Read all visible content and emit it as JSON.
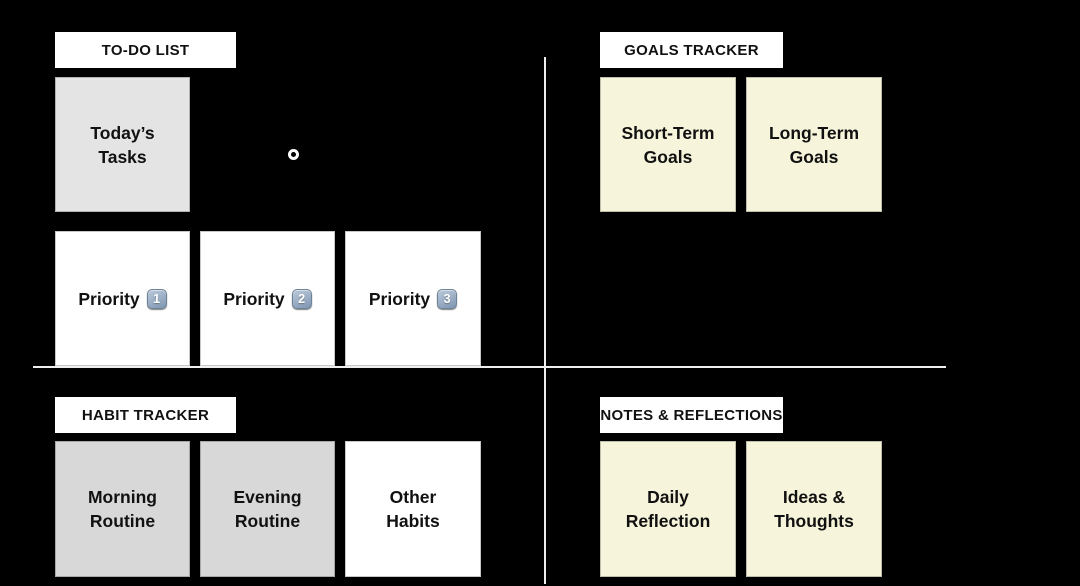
{
  "colors": {
    "background": "#000000",
    "divider": "#efefef",
    "header_bg": "#ffffff",
    "header_text": "#111111",
    "card_text": "#111111",
    "card_white": "#ffffff",
    "card_gray_light": "#e4e4e4",
    "card_gray": "#d8d8d8",
    "card_cream": "#f6f4da",
    "keycap_top": "#bccadb",
    "keycap_bottom": "#7e96b1",
    "marker": "#ffffff"
  },
  "icons": {
    "bullet_marker": "ring-circle",
    "keycap_1": "keycap digit one",
    "keycap_2": "keycap digit two",
    "keycap_3": "keycap digit three"
  },
  "quadrants": {
    "todo": {
      "header": "TO-DO LIST",
      "cards": {
        "today": {
          "line1": "Today’s",
          "line2": "Tasks"
        },
        "p1": {
          "label": "Priority",
          "keycap": "1"
        },
        "p2": {
          "label": "Priority",
          "keycap": "2"
        },
        "p3": {
          "label": "Priority",
          "keycap": "3"
        }
      }
    },
    "goals": {
      "header": "GOALS TRACKER",
      "cards": {
        "short": {
          "line1": "Short-Term",
          "line2": "Goals"
        },
        "long": {
          "line1": "Long-Term",
          "line2": "Goals"
        }
      }
    },
    "habit": {
      "header": "HABIT TRACKER",
      "cards": {
        "morning": {
          "line1": "Morning",
          "line2": "Routine"
        },
        "evening": {
          "line1": "Evening",
          "line2": "Routine"
        },
        "other": {
          "line1": "Other",
          "line2": "Habits"
        }
      }
    },
    "notes": {
      "header": "NOTES & REFLECTIONS",
      "cards": {
        "daily": {
          "line1": "Daily",
          "line2": "Reflection"
        },
        "ideas": {
          "line1": "Ideas &",
          "line2": "Thoughts"
        }
      }
    }
  }
}
